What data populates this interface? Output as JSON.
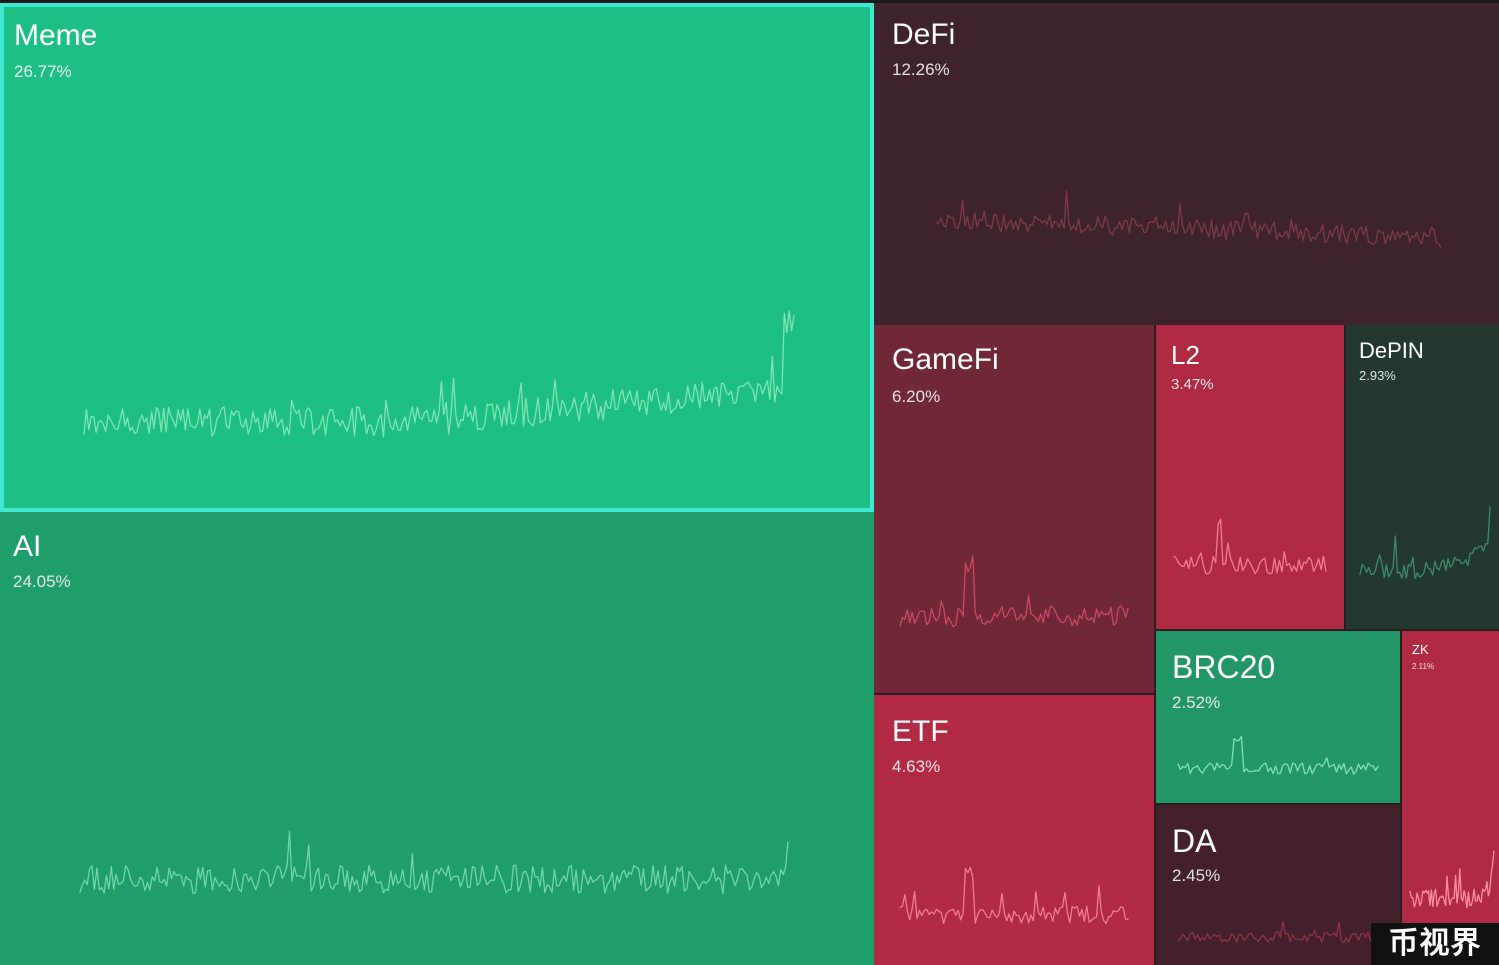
{
  "chart_data": {
    "type": "treemap",
    "sectors": [
      {
        "id": "meme",
        "name": "Meme",
        "share": "26.77%",
        "color": "#1ebf84",
        "line": "#7ee3b6",
        "selected": true,
        "seed": 11,
        "pattern": "rise"
      },
      {
        "id": "ai",
        "name": "AI",
        "share": "24.05%",
        "color": "#1f9e6c",
        "line": "#6fd6a4",
        "selected": false,
        "seed": 23,
        "pattern": "flat"
      },
      {
        "id": "defi",
        "name": "DeFi",
        "share": "12.26%",
        "color": "#3f232c",
        "line": "#7a3a48",
        "selected": false,
        "seed": 37,
        "pattern": "fall"
      },
      {
        "id": "gamefi",
        "name": "GameFi",
        "share": "6.20%",
        "color": "#702738",
        "line": "#c9485e",
        "selected": false,
        "seed": 41,
        "pattern": "spike"
      },
      {
        "id": "l2",
        "name": "L2",
        "share": "3.47%",
        "color": "#b02a44",
        "line": "#f07d8f",
        "selected": false,
        "seed": 53,
        "pattern": "spike"
      },
      {
        "id": "depin",
        "name": "DePIN",
        "share": "2.93%",
        "color": "#23382f",
        "line": "#3e8a6a",
        "selected": false,
        "seed": 67,
        "pattern": "rise"
      },
      {
        "id": "etf",
        "name": "ETF",
        "share": "4.63%",
        "color": "#b12b45",
        "line": "#f07d8f",
        "selected": false,
        "seed": 71,
        "pattern": "spike"
      },
      {
        "id": "brc20",
        "name": "BRC20",
        "share": "2.52%",
        "color": "#229666",
        "line": "#7fe0b3",
        "selected": false,
        "seed": 83,
        "pattern": "spike"
      },
      {
        "id": "da",
        "name": "DA",
        "share": "2.45%",
        "color": "#43202b",
        "line": "#8a3446",
        "selected": false,
        "seed": 97,
        "pattern": "flat"
      },
      {
        "id": "zk",
        "name": "ZK",
        "share": "2.11%",
        "color": "#b02a44",
        "line": "#ff8fa0",
        "selected": false,
        "seed": 101,
        "pattern": "endspike"
      }
    ]
  },
  "watermark": "币视界"
}
